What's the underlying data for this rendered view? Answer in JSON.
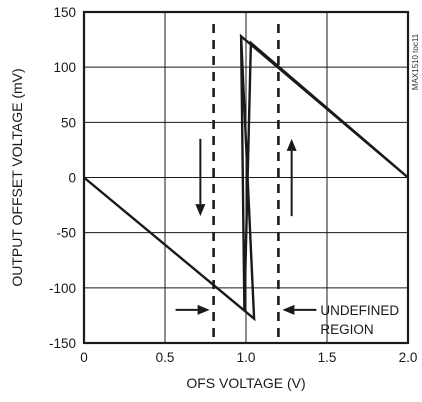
{
  "chart_data": {
    "type": "line",
    "title": "",
    "xlabel": "OFS VOLTAGE (V)",
    "ylabel": "OUTPUT OFFSET VOLTAGE (mV)",
    "xlim": [
      0,
      2.0
    ],
    "ylim": [
      -150,
      150
    ],
    "x_ticks": [
      0,
      0.5,
      1.0,
      1.5,
      2.0
    ],
    "x_tick_labels": [
      "0",
      "0.5",
      "1.0",
      "1.5",
      "2.0"
    ],
    "y_ticks": [
      -150,
      -100,
      -50,
      0,
      50,
      100,
      150
    ],
    "y_tick_labels": [
      "-150",
      "-100",
      "-50",
      "0",
      "50",
      "100",
      "150"
    ],
    "grid": true,
    "series": [
      {
        "values": [
          [
            0,
            0
          ],
          [
            1.05,
            -128
          ],
          [
            0.97,
            128
          ],
          [
            2.0,
            0
          ],
          [
            1.03,
            122
          ],
          [
            0.99,
            -120
          ],
          [
            0.97,
            128
          ]
        ]
      }
    ],
    "boundaries_x": [
      0.8,
      1.2
    ],
    "annotations": {
      "region_label_line1": "UNDEFINED",
      "region_label_line2": "REGION",
      "arrow_down_x": 0.78,
      "arrow_up_x": 1.22,
      "side_code": "MAX1510 toc11"
    },
    "colors": {
      "line": "#1a1a1a",
      "grid": "#1a1a1a"
    }
  }
}
